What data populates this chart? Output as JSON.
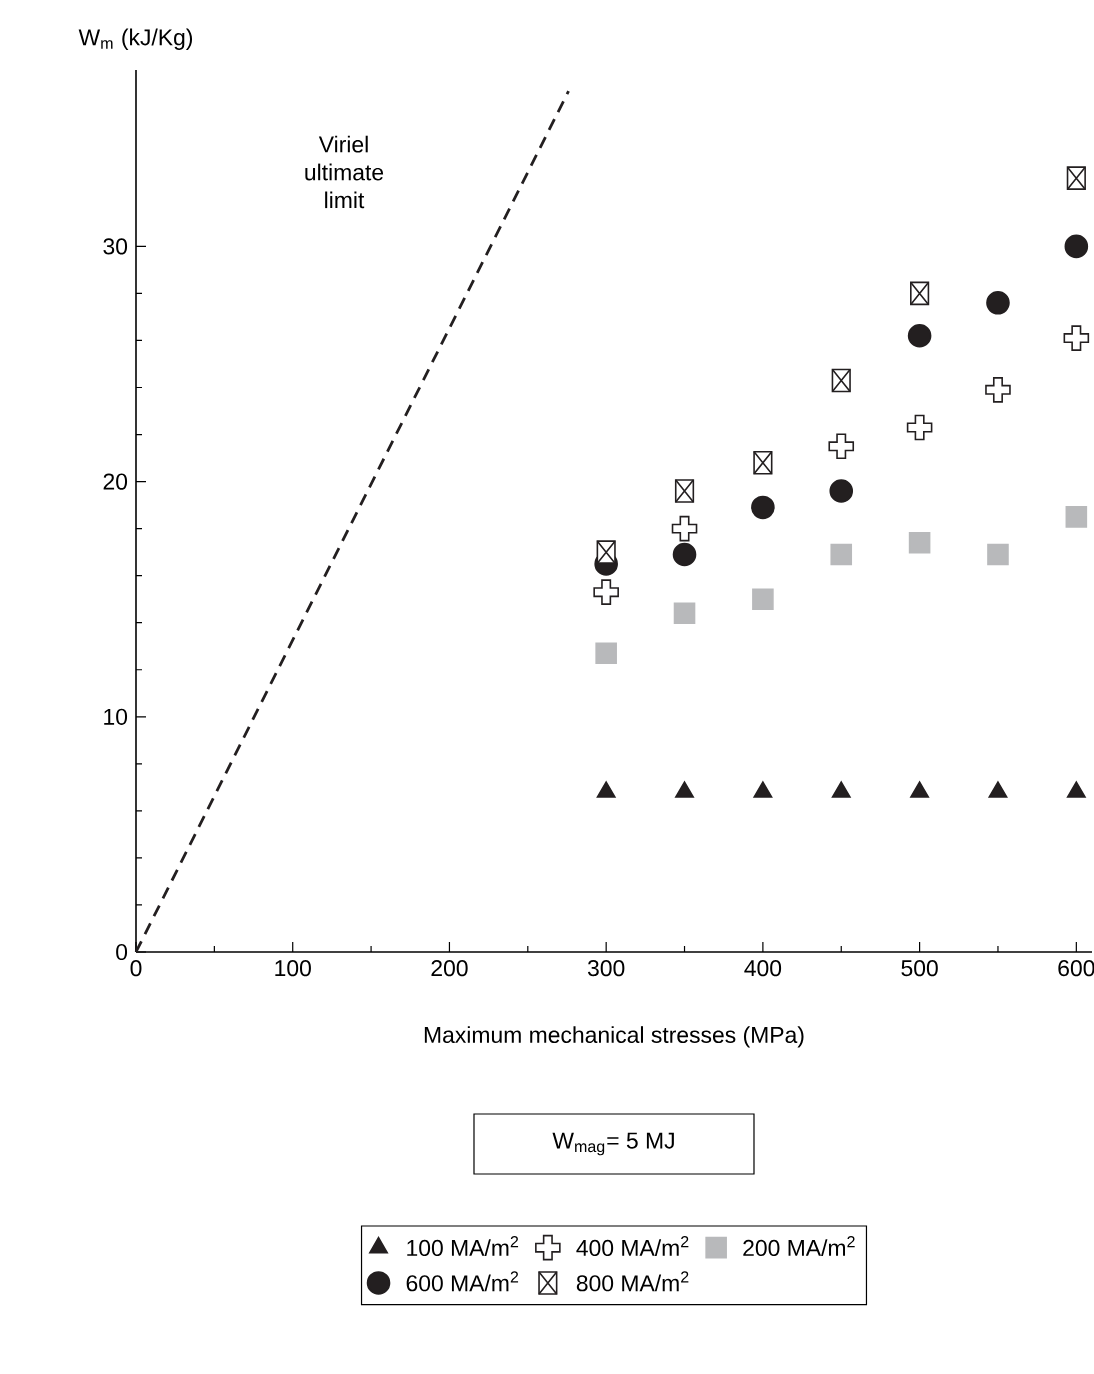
{
  "chart_data": {
    "type": "scatter",
    "xlabel": "Maximum mechanical stresses (MPa)",
    "ylabel": "W$_{m}$ (kJ/Kg)",
    "x": [
      300,
      350,
      400,
      450,
      500,
      550,
      600
    ],
    "xlim": [
      0,
      610
    ],
    "ylim": [
      0,
      37.5
    ],
    "xticks": [
      0,
      100,
      200,
      300,
      400,
      500,
      600
    ],
    "yticks": [
      0,
      10,
      20,
      30
    ],
    "grid": false,
    "legend": "bottom",
    "series": [
      {
        "name": "100 MA/m$^{2}$",
        "color": "#231f20",
        "marker": "triangle",
        "values": [
          6.8,
          6.8,
          6.8,
          6.8,
          6.8,
          6.8,
          6.8
        ]
      },
      {
        "name": "400 MA/m$^{2}$",
        "color": "#231f20",
        "marker": "cross",
        "values": [
          15.3,
          18.0,
          null,
          21.5,
          22.3,
          23.9,
          26.1
        ]
      },
      {
        "name": "200 MA/m$^{2}$",
        "color": "#b8b9bb",
        "marker": "square",
        "values": [
          12.7,
          14.4,
          15.0,
          16.9,
          17.4,
          16.9,
          18.5
        ]
      },
      {
        "name": "600 MA/m$^{2}$",
        "color": "#231f20",
        "marker": "circle",
        "values": [
          16.5,
          16.9,
          18.9,
          19.6,
          26.2,
          27.6,
          30.0
        ]
      },
      {
        "name": "800 MA/m$^{2}$",
        "color": "#231f20",
        "marker": "square",
        "values": [
          17.0,
          19.6,
          20.8,
          24.3,
          28.0,
          null,
          32.9
        ]
      },
      {
        "type": "line",
        "color": "#231f20",
        "marker": "none",
        "line_style": "dashed",
        "x": [
          0,
          276
        ],
        "values": [
          0,
          36.6
        ]
      }
    ],
    "annotations": [
      "Viriel ultimate limit",
      "W$_{mag}$= 5 MJ"
    ]
  }
}
